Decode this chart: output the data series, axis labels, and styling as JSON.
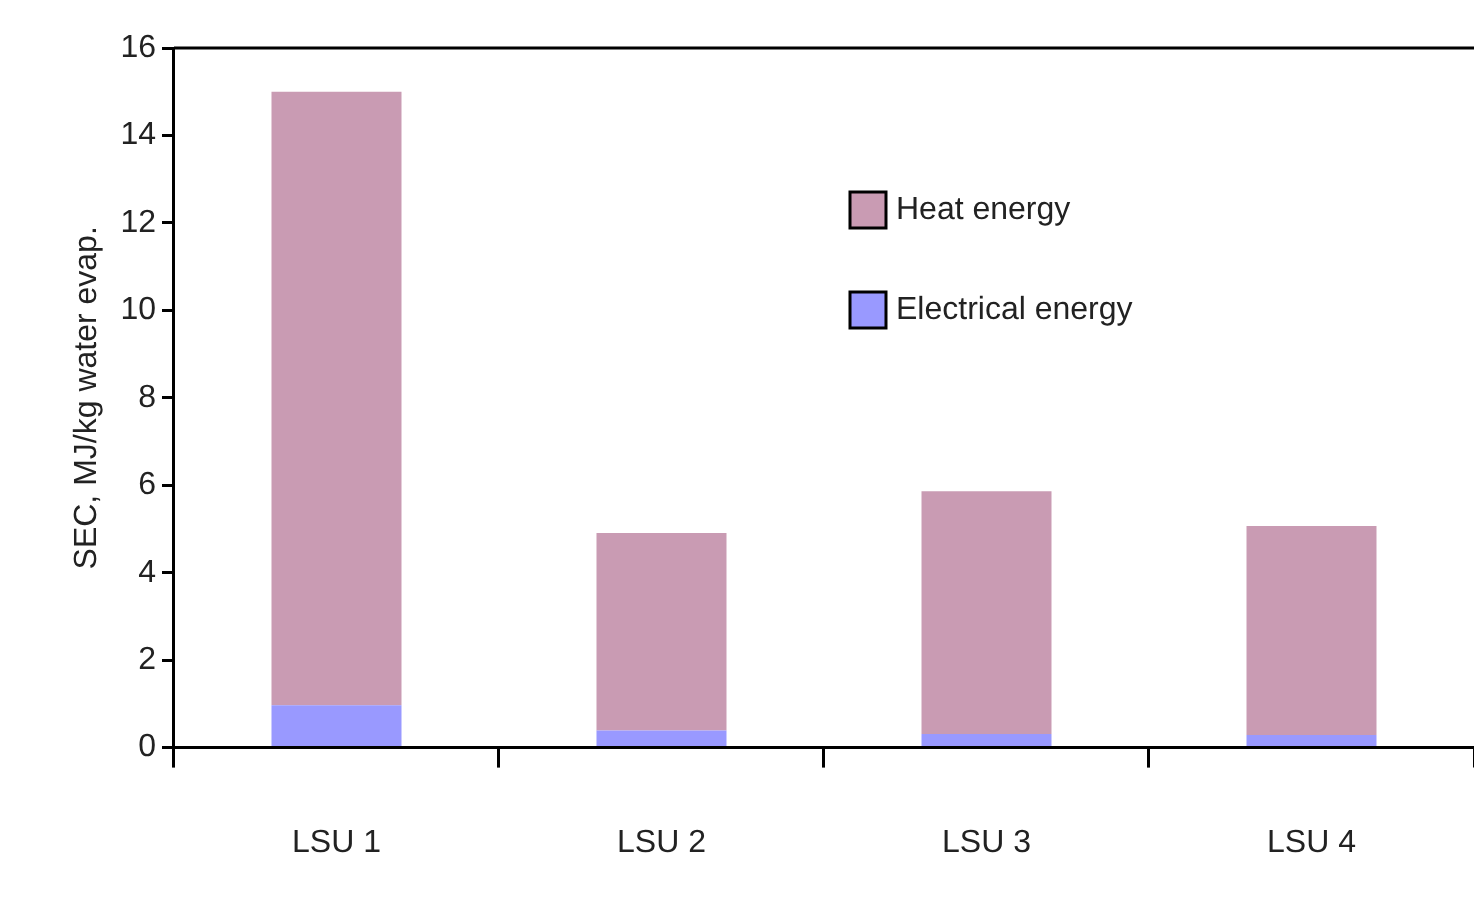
{
  "chart_data": {
    "type": "bar",
    "stacked": true,
    "ylabel": "SEC, MJ/kg water evap.",
    "categories": [
      "LSU 1",
      "LSU 2",
      "LSU 3",
      "LSU 4"
    ],
    "series": [
      {
        "name": "Electrical energy",
        "color": "#9999ff",
        "values": [
          0.97,
          0.39,
          0.31,
          0.29
        ]
      },
      {
        "name": "Heat energy",
        "color": "#c99bb3",
        "values": [
          14.03,
          4.52,
          5.55,
          4.78
        ]
      }
    ],
    "ylim": [
      0,
      16
    ],
    "yticks": [
      0,
      2,
      4,
      6,
      8,
      10,
      12,
      14,
      16
    ],
    "grid": false,
    "legend": "top right"
  }
}
